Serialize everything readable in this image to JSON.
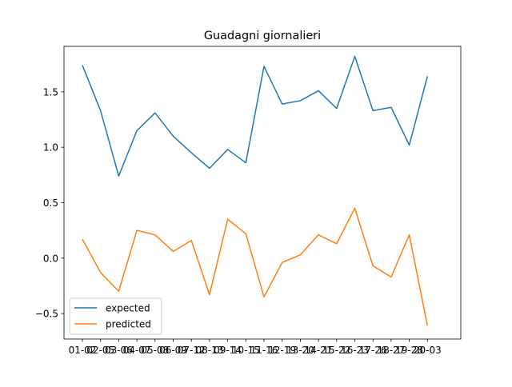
{
  "chart_data": {
    "type": "line",
    "title": "Guadagni giornalieri",
    "xlabel": "",
    "ylabel": "",
    "x": [
      "01-02",
      "02-05",
      "03-06",
      "04-07",
      "05-08",
      "06-09",
      "07-12",
      "08-13",
      "09-14",
      "10-15",
      "11-16",
      "12-19",
      "13-20",
      "14-21",
      "15-22",
      "16-23",
      "17-26",
      "18-27",
      "19-28",
      "20-03"
    ],
    "ylim": [
      -0.73,
      1.91
    ],
    "yticks": [
      -0.5,
      0.0,
      0.5,
      1.0,
      1.5
    ],
    "ytick_labels": [
      "−0.5",
      "0.0",
      "0.5",
      "1.0",
      "1.5"
    ],
    "grid": false,
    "legend_position": "lower-left",
    "series": [
      {
        "name": "expected",
        "color": "#1f77b4",
        "values": [
          1.74,
          1.33,
          0.74,
          1.15,
          1.31,
          1.1,
          0.95,
          0.81,
          0.98,
          0.86,
          1.73,
          1.39,
          1.42,
          1.51,
          1.35,
          1.82,
          1.33,
          1.36,
          1.02,
          1.64
        ]
      },
      {
        "name": "predicted",
        "color": "#ff7f0e",
        "values": [
          0.17,
          -0.13,
          -0.3,
          0.25,
          0.21,
          0.06,
          0.16,
          -0.33,
          0.35,
          0.22,
          -0.35,
          -0.04,
          0.03,
          0.21,
          0.13,
          0.45,
          -0.07,
          -0.17,
          0.21,
          -0.61
        ]
      }
    ]
  }
}
